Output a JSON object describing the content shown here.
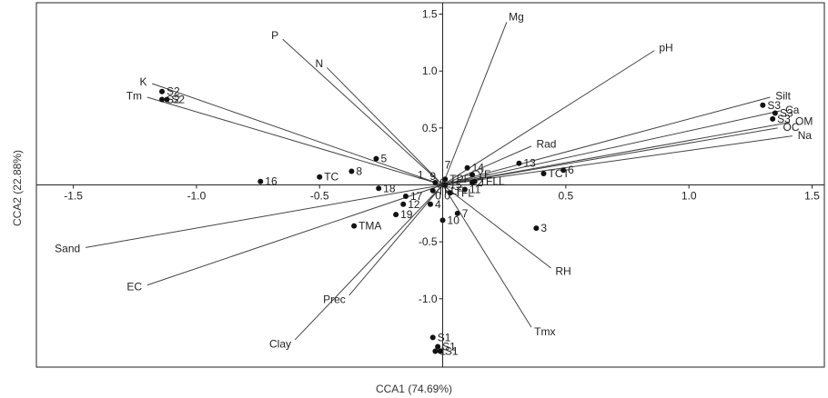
{
  "chart_data": {
    "type": "scatter",
    "subtype": "CCA biplot",
    "xlabel": "CCA1 (74.69%)",
    "ylabel": "CCA2 (22.88%)",
    "xlim": [
      -1.65,
      1.55
    ],
    "ylim": [
      -1.6,
      1.6
    ],
    "xticks": [
      "-1.5",
      "-1.0",
      "-0.5",
      "0.0",
      "0.5",
      "1.0",
      "1.5"
    ],
    "yticks": [
      "1.5",
      "1.0",
      "0.5",
      "-0.5",
      "-1.0"
    ],
    "xtick_values": [
      -1.5,
      -1.0,
      -0.5,
      0.0,
      0.5,
      1.0,
      1.5
    ],
    "ytick_values": [
      1.5,
      1.0,
      0.5,
      -0.5,
      -1.0
    ],
    "grid": false,
    "vectors": [
      {
        "label": "Mg",
        "x": 0.26,
        "y": 1.43
      },
      {
        "label": "pH",
        "x": 0.86,
        "y": 1.18
      },
      {
        "label": "P",
        "x": -0.65,
        "y": 1.28
      },
      {
        "label": "N",
        "x": -0.47,
        "y": 1.03
      },
      {
        "label": "K",
        "x": -1.18,
        "y": 0.89
      },
      {
        "label": "Tm",
        "x": -1.2,
        "y": 0.77
      },
      {
        "label": "Silt",
        "x": 1.33,
        "y": 0.77
      },
      {
        "label": "Ca",
        "x": 1.37,
        "y": 0.65
      },
      {
        "label": "OM",
        "x": 1.41,
        "y": 0.55
      },
      {
        "label": "OC",
        "x": 1.36,
        "y": 0.5
      },
      {
        "label": "Na",
        "x": 1.42,
        "y": 0.43
      },
      {
        "label": "Rad",
        "x": 0.36,
        "y": 0.34
      },
      {
        "label": "RH",
        "x": 0.44,
        "y": -0.73
      },
      {
        "label": "Tmx",
        "x": 0.36,
        "y": -1.25
      },
      {
        "label": "Sand",
        "x": -1.45,
        "y": -0.55
      },
      {
        "label": "EC",
        "x": -1.2,
        "y": -0.88
      },
      {
        "label": "Prec",
        "x": -0.38,
        "y": -0.97
      },
      {
        "label": "Clay",
        "x": -0.6,
        "y": -1.36
      }
    ],
    "points": [
      {
        "label": "S2",
        "x": -1.14,
        "y": 0.82
      },
      {
        "label": "S2",
        "x": -1.14,
        "y": 0.75
      },
      {
        "label": "S2",
        "x": -1.12,
        "y": 0.75
      },
      {
        "label": "S3",
        "x": 1.3,
        "y": 0.7
      },
      {
        "label": "S3",
        "x": 1.35,
        "y": 0.63
      },
      {
        "label": "S3",
        "x": 1.34,
        "y": 0.58
      },
      {
        "label": "S1",
        "x": -0.04,
        "y": -1.34
      },
      {
        "label": "S1",
        "x": -0.02,
        "y": -1.42
      },
      {
        "label": "S1",
        "x": -0.01,
        "y": -1.46
      },
      {
        "label": "1",
        "x": -0.03,
        "y": -1.46
      },
      {
        "label": "2",
        "x": 0.12,
        "y": 0.02
      },
      {
        "label": "3",
        "x": 0.38,
        "y": -0.38
      },
      {
        "label": "4",
        "x": -0.05,
        "y": -0.17
      },
      {
        "label": "5",
        "x": -0.27,
        "y": 0.23
      },
      {
        "label": "6",
        "x": 0.49,
        "y": 0.13
      },
      {
        "label": "7",
        "x": 0.06,
        "y": -0.25
      },
      {
        "label": "8",
        "x": -0.37,
        "y": 0.12
      },
      {
        "label": "9",
        "x": -0.03,
        "y": 0.02
      },
      {
        "label": "10",
        "x": 0.0,
        "y": -0.31
      },
      {
        "label": "11",
        "x": 0.09,
        "y": -0.04
      },
      {
        "label": "12",
        "x": -0.16,
        "y": -0.17
      },
      {
        "label": "13",
        "x": 0.31,
        "y": 0.19
      },
      {
        "label": "14",
        "x": 0.1,
        "y": 0.15
      },
      {
        "label": "15",
        "x": 0.01,
        "y": 0.0
      },
      {
        "label": "16",
        "x": -0.74,
        "y": 0.03
      },
      {
        "label": "17",
        "x": -0.15,
        "y": -0.1
      },
      {
        "label": "18",
        "x": -0.26,
        "y": -0.03
      },
      {
        "label": "19",
        "x": -0.19,
        "y": -0.26
      },
      {
        "label": "TC",
        "x": -0.5,
        "y": 0.07
      },
      {
        "label": "TCT",
        "x": 0.41,
        "y": 0.1
      },
      {
        "label": "TMA",
        "x": -0.36,
        "y": -0.36
      },
      {
        "label": "TPF",
        "x": 0.01,
        "y": 0.05
      },
      {
        "label": "TFLL",
        "x": 0.13,
        "y": 0.03
      },
      {
        "label": "YF",
        "x": 0.12,
        "y": 0.09
      },
      {
        "label": "TFLF",
        "x": -0.04,
        "y": -0.05
      },
      {
        "label": "TFL",
        "x": 0.03,
        "y": -0.07
      }
    ],
    "extra_labels": [
      {
        "text": "9",
        "x": -0.03,
        "y": 0.02
      },
      {
        "text": "7",
        "x": 0.03,
        "y": 0.12
      },
      {
        "text": "1",
        "x": -0.08,
        "y": 0.03
      }
    ]
  }
}
